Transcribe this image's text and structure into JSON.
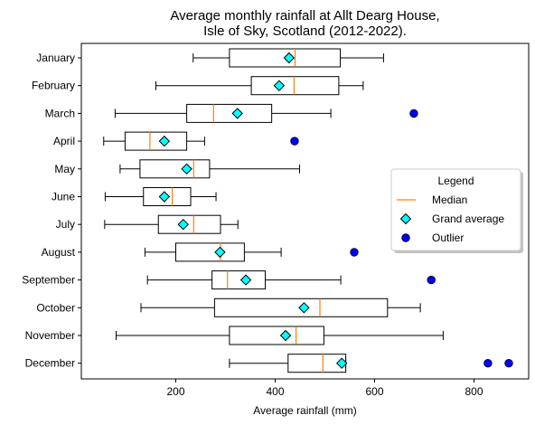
{
  "chart_data": {
    "type": "boxplot",
    "orientation": "horizontal",
    "title": "Average monthly rainfall at Allt Dearg House,\nIsle of Sky, Scotland (2012-2022).",
    "xlabel": "Average rainfall (mm)",
    "ylabel": "",
    "xlim": [
      10,
      910
    ],
    "xticks": [
      200,
      400,
      600,
      800
    ],
    "grid": false,
    "categories": [
      "January",
      "February",
      "March",
      "April",
      "May",
      "June",
      "July",
      "August",
      "September",
      "October",
      "November",
      "December"
    ],
    "series": [
      {
        "category": "January",
        "whisker_low": 235,
        "q1": 308,
        "median": 440,
        "q3": 531,
        "whisker_high": 618,
        "mean": 428,
        "outliers": []
      },
      {
        "category": "February",
        "whisker_low": 160,
        "q1": 352,
        "median": 438,
        "q3": 528,
        "whisker_high": 577,
        "mean": 408,
        "outliers": []
      },
      {
        "category": "March",
        "whisker_low": 78,
        "q1": 222,
        "median": 276,
        "q3": 393,
        "whisker_high": 512,
        "mean": 324,
        "outliers": [
          679
        ]
      },
      {
        "category": "April",
        "whisker_low": 55,
        "q1": 98,
        "median": 148,
        "q3": 222,
        "whisker_high": 258,
        "mean": 177,
        "outliers": [
          439
        ]
      },
      {
        "category": "May",
        "whisker_low": 88,
        "q1": 128,
        "median": 236,
        "q3": 268,
        "whisker_high": 449,
        "mean": 222,
        "outliers": []
      },
      {
        "category": "June",
        "whisker_low": 58,
        "q1": 135,
        "median": 193,
        "q3": 230,
        "whisker_high": 281,
        "mean": 177,
        "outliers": []
      },
      {
        "category": "July",
        "whisker_low": 57,
        "q1": 165,
        "median": 236,
        "q3": 290,
        "whisker_high": 325,
        "mean": 215,
        "outliers": []
      },
      {
        "category": "August",
        "whisker_low": 138,
        "q1": 200,
        "median": 290,
        "q3": 338,
        "whisker_high": 412,
        "mean": 289,
        "outliers": [
          559
        ]
      },
      {
        "category": "September",
        "whisker_low": 143,
        "q1": 273,
        "median": 304,
        "q3": 380,
        "whisker_high": 532,
        "mean": 341,
        "outliers": [
          714
        ]
      },
      {
        "category": "October",
        "whisker_low": 130,
        "q1": 278,
        "median": 490,
        "q3": 626,
        "whisker_high": 692,
        "mean": 458,
        "outliers": []
      },
      {
        "category": "November",
        "whisker_low": 80,
        "q1": 308,
        "median": 442,
        "q3": 498,
        "whisker_high": 738,
        "mean": 421,
        "outliers": []
      },
      {
        "category": "December",
        "whisker_low": 308,
        "q1": 426,
        "median": 496,
        "q3": 542,
        "whisker_high": 542,
        "mean": 534,
        "outliers": [
          828,
          870
        ]
      }
    ],
    "legend": {
      "title": "Legend",
      "placement": "center-right",
      "entries": [
        {
          "label": "Median",
          "marker": "line",
          "color": "#ff7f0e"
        },
        {
          "label": "Grand average",
          "marker": "diamond",
          "color": "#00ffff"
        },
        {
          "label": "Outlier",
          "marker": "circle",
          "color": "#0000ff"
        }
      ]
    },
    "colors": {
      "median": "#ff7f0e",
      "mean_fill": "#00ffff",
      "outlier_fill": "#0000ff",
      "box_edge": "#000000"
    }
  }
}
